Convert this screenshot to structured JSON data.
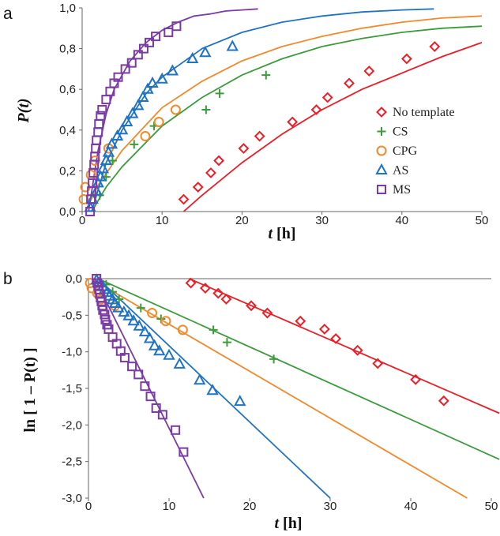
{
  "colors": {
    "No template": "#ee1c25",
    "CS": "#3a9c3a",
    "CPG": "#f4892a",
    "AS": "#1f73c4",
    "MS": "#7b3aa5"
  },
  "chart_data": [
    {
      "panel_label": "a",
      "type": "scatter",
      "title": "",
      "xlabel_italic": "t",
      "xlabel_unit": " [h]",
      "ylabel": "P(t)",
      "xlim": [
        0,
        50
      ],
      "ylim": [
        0,
        1.0
      ],
      "xticks": [
        "0",
        "10",
        "20",
        "30",
        "40",
        "50"
      ],
      "yticks": [
        "0,0",
        "0,2",
        "0,4",
        "0,6",
        "0,8",
        "1,0"
      ],
      "legend": [
        "No template",
        "CS",
        "CPG",
        "AS",
        "MS"
      ],
      "legend_position": "right",
      "series": [
        {
          "name": "No template",
          "marker": "diamond",
          "points": [
            [
              12.7,
              0.06
            ],
            [
              14.5,
              0.12
            ],
            [
              16.1,
              0.19
            ],
            [
              17.1,
              0.25
            ],
            [
              20.2,
              0.31
            ],
            [
              22.2,
              0.37
            ],
            [
              26.3,
              0.44
            ],
            [
              29.3,
              0.5
            ],
            [
              30.7,
              0.56
            ],
            [
              33.4,
              0.63
            ],
            [
              35.9,
              0.69
            ],
            [
              40.6,
              0.75
            ],
            [
              44.1,
              0.81
            ]
          ],
          "fit": [
            [
              12.7,
              0.0
            ],
            [
              15,
              0.08
            ],
            [
              20,
              0.24
            ],
            [
              25,
              0.38
            ],
            [
              30,
              0.5
            ],
            [
              35,
              0.6
            ],
            [
              40,
              0.68
            ],
            [
              45,
              0.76
            ],
            [
              50,
              0.83
            ]
          ]
        },
        {
          "name": "CS",
          "marker": "plus",
          "points": [
            [
              2.2,
              0.08
            ],
            [
              3.0,
              0.17
            ],
            [
              3.8,
              0.25
            ],
            [
              6.5,
              0.33
            ],
            [
              9.0,
              0.42
            ],
            [
              15.5,
              0.5
            ],
            [
              17.2,
              0.58
            ],
            [
              23.0,
              0.67
            ]
          ],
          "fit": [
            [
              1.2,
              0.0
            ],
            [
              3,
              0.12
            ],
            [
              5,
              0.22
            ],
            [
              10,
              0.42
            ],
            [
              15,
              0.56
            ],
            [
              20,
              0.67
            ],
            [
              25,
              0.75
            ],
            [
              30,
              0.81
            ],
            [
              35,
              0.85
            ],
            [
              40,
              0.88
            ],
            [
              45,
              0.9
            ],
            [
              50,
              0.91
            ]
          ]
        },
        {
          "name": "CPG",
          "marker": "circle",
          "points": [
            [
              0.2,
              0.06
            ],
            [
              0.4,
              0.12
            ],
            [
              1.1,
              0.18
            ],
            [
              1.6,
              0.25
            ],
            [
              3.3,
              0.31
            ],
            [
              7.9,
              0.37
            ],
            [
              9.6,
              0.44
            ],
            [
              11.7,
              0.5
            ]
          ],
          "fit": [
            [
              0.4,
              0.0
            ],
            [
              2,
              0.13
            ],
            [
              5,
              0.3
            ],
            [
              10,
              0.51
            ],
            [
              15,
              0.64
            ],
            [
              20,
              0.74
            ],
            [
              25,
              0.81
            ],
            [
              30,
              0.86
            ],
            [
              35,
              0.9
            ],
            [
              40,
              0.93
            ],
            [
              45,
              0.95
            ],
            [
              50,
              0.96
            ]
          ]
        },
        {
          "name": "AS",
          "marker": "triangle",
          "points": [
            [
              1.0,
              0.02
            ],
            [
              1.3,
              0.06
            ],
            [
              1.8,
              0.1
            ],
            [
              2.0,
              0.14
            ],
            [
              2.3,
              0.17
            ],
            [
              2.6,
              0.21
            ],
            [
              3.0,
              0.25
            ],
            [
              3.3,
              0.29
            ],
            [
              3.7,
              0.33
            ],
            [
              4.4,
              0.37
            ],
            [
              5.0,
              0.4
            ],
            [
              5.6,
              0.44
            ],
            [
              6.3,
              0.48
            ],
            [
              7.0,
              0.52
            ],
            [
              7.6,
              0.56
            ],
            [
              8.2,
              0.6
            ],
            [
              8.8,
              0.63
            ],
            [
              10.0,
              0.65
            ],
            [
              11.3,
              0.69
            ],
            [
              13.8,
              0.75
            ],
            [
              15.4,
              0.78
            ],
            [
              18.8,
              0.81
            ]
          ],
          "fit": [
            [
              1.2,
              0.0
            ],
            [
              3,
              0.24
            ],
            [
              5,
              0.4
            ],
            [
              8,
              0.58
            ],
            [
              10,
              0.66
            ],
            [
              15,
              0.8
            ],
            [
              20,
              0.88
            ],
            [
              25,
              0.93
            ],
            [
              30,
              0.96
            ],
            [
              35,
              0.98
            ],
            [
              40,
              0.99
            ],
            [
              44,
              0.995
            ]
          ]
        },
        {
          "name": "MS",
          "marker": "square",
          "points": [
            [
              1.0,
              0.0
            ],
            [
              1.1,
              0.06
            ],
            [
              1.2,
              0.1
            ],
            [
              1.3,
              0.14
            ],
            [
              1.4,
              0.19
            ],
            [
              1.5,
              0.23
            ],
            [
              1.6,
              0.27
            ],
            [
              1.7,
              0.31
            ],
            [
              1.8,
              0.35
            ],
            [
              2.0,
              0.39
            ],
            [
              2.1,
              0.43
            ],
            [
              2.3,
              0.47
            ],
            [
              2.5,
              0.5
            ],
            [
              3.0,
              0.55
            ],
            [
              3.5,
              0.59
            ],
            [
              4.0,
              0.63
            ],
            [
              4.5,
              0.66
            ],
            [
              5.4,
              0.7
            ],
            [
              6.2,
              0.73
            ],
            [
              7.0,
              0.77
            ],
            [
              7.7,
              0.8
            ],
            [
              8.4,
              0.83
            ],
            [
              9.2,
              0.86
            ],
            [
              10.8,
              0.88
            ],
            [
              11.8,
              0.91
            ]
          ],
          "fit": [
            [
              0.8,
              0.0
            ],
            [
              2,
              0.3
            ],
            [
              3,
              0.48
            ],
            [
              4,
              0.6
            ],
            [
              6,
              0.74
            ],
            [
              8,
              0.83
            ],
            [
              10,
              0.89
            ],
            [
              12,
              0.93
            ],
            [
              14,
              0.96
            ],
            [
              16,
              0.97
            ],
            [
              18,
              0.985
            ],
            [
              20,
              0.99
            ],
            [
              22,
              0.995
            ]
          ]
        }
      ]
    },
    {
      "panel_label": "b",
      "type": "scatter",
      "title": "",
      "xlabel_italic": "t",
      "xlabel_unit": " [h]",
      "ylabel": "ln [ 1 – P(t) ]",
      "xlim": [
        0,
        50
      ],
      "ylim": [
        -3.0,
        0.0
      ],
      "xticks": [
        "0",
        "10",
        "20",
        "30",
        "40",
        "50"
      ],
      "yticks": [
        "0,0",
        "-0,5",
        "-1,0",
        "-1,5",
        "-2,0",
        "-2,5",
        "-3,0"
      ],
      "series": [
        {
          "name": "No template",
          "marker": "diamond",
          "points": [
            [
              12.7,
              -0.06
            ],
            [
              14.5,
              -0.13
            ],
            [
              16.1,
              -0.2
            ],
            [
              17.1,
              -0.28
            ],
            [
              20.2,
              -0.37
            ],
            [
              22.2,
              -0.47
            ],
            [
              26.3,
              -0.58
            ],
            [
              29.3,
              -0.69
            ],
            [
              30.7,
              -0.82
            ],
            [
              33.4,
              -0.98
            ],
            [
              35.9,
              -1.16
            ],
            [
              40.6,
              -1.38
            ],
            [
              44.1,
              -1.67
            ]
          ],
          "fit": [
            [
              12.5,
              0.0
            ],
            [
              51,
              -1.84
            ]
          ]
        },
        {
          "name": "CS",
          "marker": "plus",
          "points": [
            [
              2.2,
              -0.08
            ],
            [
              3.0,
              -0.18
            ],
            [
              3.8,
              -0.28
            ],
            [
              6.5,
              -0.4
            ],
            [
              9.0,
              -0.55
            ],
            [
              15.5,
              -0.7
            ],
            [
              17.2,
              -0.87
            ],
            [
              23.0,
              -1.1
            ]
          ],
          "fit": [
            [
              1.2,
              0.0
            ],
            [
              51,
              -2.47
            ]
          ]
        },
        {
          "name": "CPG",
          "marker": "circle",
          "points": [
            [
              0.2,
              -0.06
            ],
            [
              0.4,
              -0.13
            ],
            [
              1.1,
              -0.2
            ],
            [
              1.6,
              -0.28
            ],
            [
              3.3,
              -0.37
            ],
            [
              7.9,
              -0.47
            ],
            [
              9.6,
              -0.58
            ],
            [
              11.7,
              -0.7
            ]
          ],
          "fit": [
            [
              0.3,
              0.0
            ],
            [
              47,
              -3.0
            ]
          ]
        },
        {
          "name": "AS",
          "marker": "triangle",
          "points": [
            [
              1.0,
              -0.02
            ],
            [
              1.3,
              -0.06
            ],
            [
              1.8,
              -0.11
            ],
            [
              2.0,
              -0.15
            ],
            [
              2.3,
              -0.19
            ],
            [
              2.6,
              -0.24
            ],
            [
              3.0,
              -0.29
            ],
            [
              3.3,
              -0.34
            ],
            [
              3.7,
              -0.4
            ],
            [
              4.4,
              -0.46
            ],
            [
              5.0,
              -0.51
            ],
            [
              5.6,
              -0.58
            ],
            [
              6.3,
              -0.65
            ],
            [
              7.0,
              -0.73
            ],
            [
              7.6,
              -0.82
            ],
            [
              8.2,
              -0.92
            ],
            [
              8.8,
              -0.99
            ],
            [
              10.0,
              -1.05
            ],
            [
              11.3,
              -1.17
            ],
            [
              13.8,
              -1.39
            ],
            [
              15.4,
              -1.53
            ],
            [
              18.8,
              -1.68
            ]
          ],
          "fit": [
            [
              1.2,
              0.0
            ],
            [
              30,
              -3.0
            ]
          ]
        },
        {
          "name": "MS",
          "marker": "square",
          "points": [
            [
              1.0,
              0.0
            ],
            [
              1.1,
              -0.06
            ],
            [
              1.2,
              -0.1
            ],
            [
              1.3,
              -0.15
            ],
            [
              1.4,
              -0.21
            ],
            [
              1.5,
              -0.26
            ],
            [
              1.6,
              -0.31
            ],
            [
              1.7,
              -0.37
            ],
            [
              1.8,
              -0.43
            ],
            [
              2.0,
              -0.49
            ],
            [
              2.1,
              -0.56
            ],
            [
              2.3,
              -0.63
            ],
            [
              2.5,
              -0.69
            ],
            [
              3.0,
              -0.8
            ],
            [
              3.5,
              -0.89
            ],
            [
              4.0,
              -0.99
            ],
            [
              4.5,
              -1.08
            ],
            [
              5.4,
              -1.2
            ],
            [
              6.2,
              -1.31
            ],
            [
              7.0,
              -1.47
            ],
            [
              7.7,
              -1.61
            ],
            [
              8.4,
              -1.77
            ],
            [
              9.2,
              -1.86
            ],
            [
              10.8,
              -2.07
            ],
            [
              11.8,
              -2.37
            ]
          ],
          "fit": [
            [
              0.8,
              0.0
            ],
            [
              14.3,
              -3.0
            ]
          ]
        }
      ]
    }
  ]
}
